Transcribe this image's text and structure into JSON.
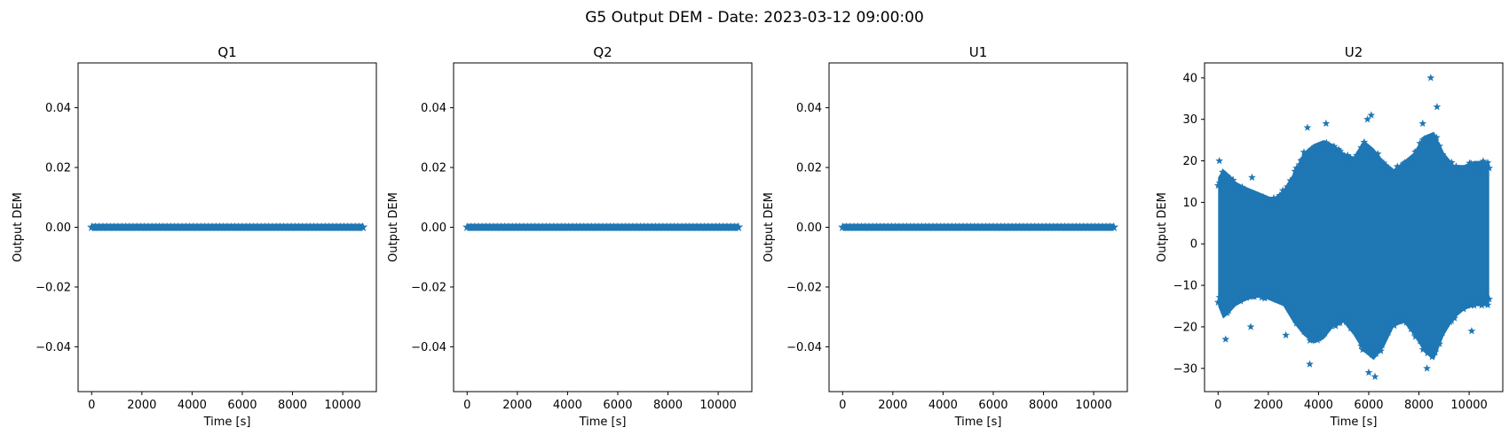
{
  "figure": {
    "suptitle": "G5 Output DEM - Date: 2023-03-12 09:00:00"
  },
  "style": {
    "series_color": "#1f77b4",
    "axis_color": "#000000",
    "background": "#ffffff",
    "marker": "star"
  },
  "chart_data": [
    {
      "type": "scatter",
      "title": "Q1",
      "xlabel": "Time [s]",
      "ylabel": "Output DEM",
      "xlim": [
        -540,
        11340
      ],
      "ylim": [
        -0.055,
        0.055
      ],
      "xticks": [
        0,
        2000,
        4000,
        6000,
        8000,
        10000
      ],
      "xtick_labels": [
        "0",
        "2000",
        "4000",
        "6000",
        "8000",
        "10000"
      ],
      "yticks": [
        -0.04,
        -0.02,
        0.0,
        0.02,
        0.04
      ],
      "ytick_labels": [
        "−0.04",
        "−0.02",
        "0.00",
        "0.02",
        "0.04"
      ],
      "grid": false,
      "series": [
        {
          "x_range": [
            0,
            10800
          ],
          "x_step": 1,
          "y_constant": 0.0
        }
      ]
    },
    {
      "type": "scatter",
      "title": "Q2",
      "xlabel": "Time [s]",
      "ylabel": "Output DEM",
      "xlim": [
        -540,
        11340
      ],
      "ylim": [
        -0.055,
        0.055
      ],
      "xticks": [
        0,
        2000,
        4000,
        6000,
        8000,
        10000
      ],
      "xtick_labels": [
        "0",
        "2000",
        "4000",
        "6000",
        "8000",
        "10000"
      ],
      "yticks": [
        -0.04,
        -0.02,
        0.0,
        0.02,
        0.04
      ],
      "ytick_labels": [
        "−0.04",
        "−0.02",
        "0.00",
        "0.02",
        "0.04"
      ],
      "grid": false,
      "series": [
        {
          "x_range": [
            0,
            10800
          ],
          "x_step": 1,
          "y_constant": 0.0
        }
      ]
    },
    {
      "type": "scatter",
      "title": "U1",
      "xlabel": "Time [s]",
      "ylabel": "Output DEM",
      "xlim": [
        -540,
        11340
      ],
      "ylim": [
        -0.055,
        0.055
      ],
      "xticks": [
        0,
        2000,
        4000,
        6000,
        8000,
        10000
      ],
      "xtick_labels": [
        "0",
        "2000",
        "4000",
        "6000",
        "8000",
        "10000"
      ],
      "yticks": [
        -0.04,
        -0.02,
        0.0,
        0.02,
        0.04
      ],
      "ytick_labels": [
        "−0.04",
        "−0.02",
        "0.00",
        "0.02",
        "0.04"
      ],
      "grid": false,
      "series": [
        {
          "x_range": [
            0,
            10800
          ],
          "x_step": 1,
          "y_constant": 0.0
        }
      ]
    },
    {
      "type": "scatter",
      "title": "U2",
      "xlabel": "Time [s]",
      "ylabel": "Output DEM",
      "xlim": [
        -540,
        11340
      ],
      "ylim": [
        -35.6,
        43.6
      ],
      "xticks": [
        0,
        2000,
        4000,
        6000,
        8000,
        10000
      ],
      "xtick_labels": [
        "0",
        "2000",
        "4000",
        "6000",
        "8000",
        "10000"
      ],
      "yticks": [
        -30,
        -20,
        -10,
        0,
        10,
        20,
        30,
        40
      ],
      "ytick_labels": [
        "−30",
        "−20",
        "−10",
        "0",
        "10",
        "20",
        "30",
        "40"
      ],
      "grid": false,
      "series": [
        {
          "x_range": [
            0,
            10800
          ],
          "envelope": {
            "x": [
              0,
              200,
              400,
              700,
              1000,
              1400,
              1800,
              2200,
              2600,
              3000,
              3400,
              3800,
              4200,
              4600,
              5000,
              5400,
              5800,
              6200,
              6600,
              7000,
              7400,
              7800,
              8200,
              8600,
              9000,
              9400,
              9800,
              10200,
              10600,
              10800
            ],
            "upper": [
              16,
              18,
              17,
              15,
              14,
              13,
              12,
              11,
              13,
              17,
              22,
              24,
              25,
              24,
              22,
              21,
              25,
              23,
              20,
              18,
              20,
              22,
              26,
              27,
              22,
              19,
              19,
              20,
              20,
              20
            ],
            "lower": [
              -15,
              -18,
              -17,
              -15,
              -14,
              -13,
              -13,
              -14,
              -15,
              -19,
              -22,
              -24,
              -23,
              -20,
              -19,
              -22,
              -26,
              -28,
              -25,
              -20,
              -19,
              -22,
              -26,
              -28,
              -22,
              -18,
              -16,
              -15,
              -15,
              -15
            ]
          },
          "outliers": [
            {
              "x": 8470,
              "y": 40
            },
            {
              "x": 8720,
              "y": 33
            },
            {
              "x": 5950,
              "y": 30
            },
            {
              "x": 6100,
              "y": 31
            },
            {
              "x": 8150,
              "y": 29
            },
            {
              "x": 4300,
              "y": 29
            },
            {
              "x": 3560,
              "y": 28
            },
            {
              "x": 50,
              "y": 20
            },
            {
              "x": 1350,
              "y": 16
            },
            {
              "x": 6000,
              "y": -31
            },
            {
              "x": 6250,
              "y": -32
            },
            {
              "x": 8320,
              "y": -30
            },
            {
              "x": 3650,
              "y": -29
            },
            {
              "x": 2700,
              "y": -22
            },
            {
              "x": 300,
              "y": -23
            },
            {
              "x": 8650,
              "y": -26
            },
            {
              "x": 10100,
              "y": -21
            },
            {
              "x": 1300,
              "y": -20
            }
          ]
        }
      ]
    }
  ]
}
